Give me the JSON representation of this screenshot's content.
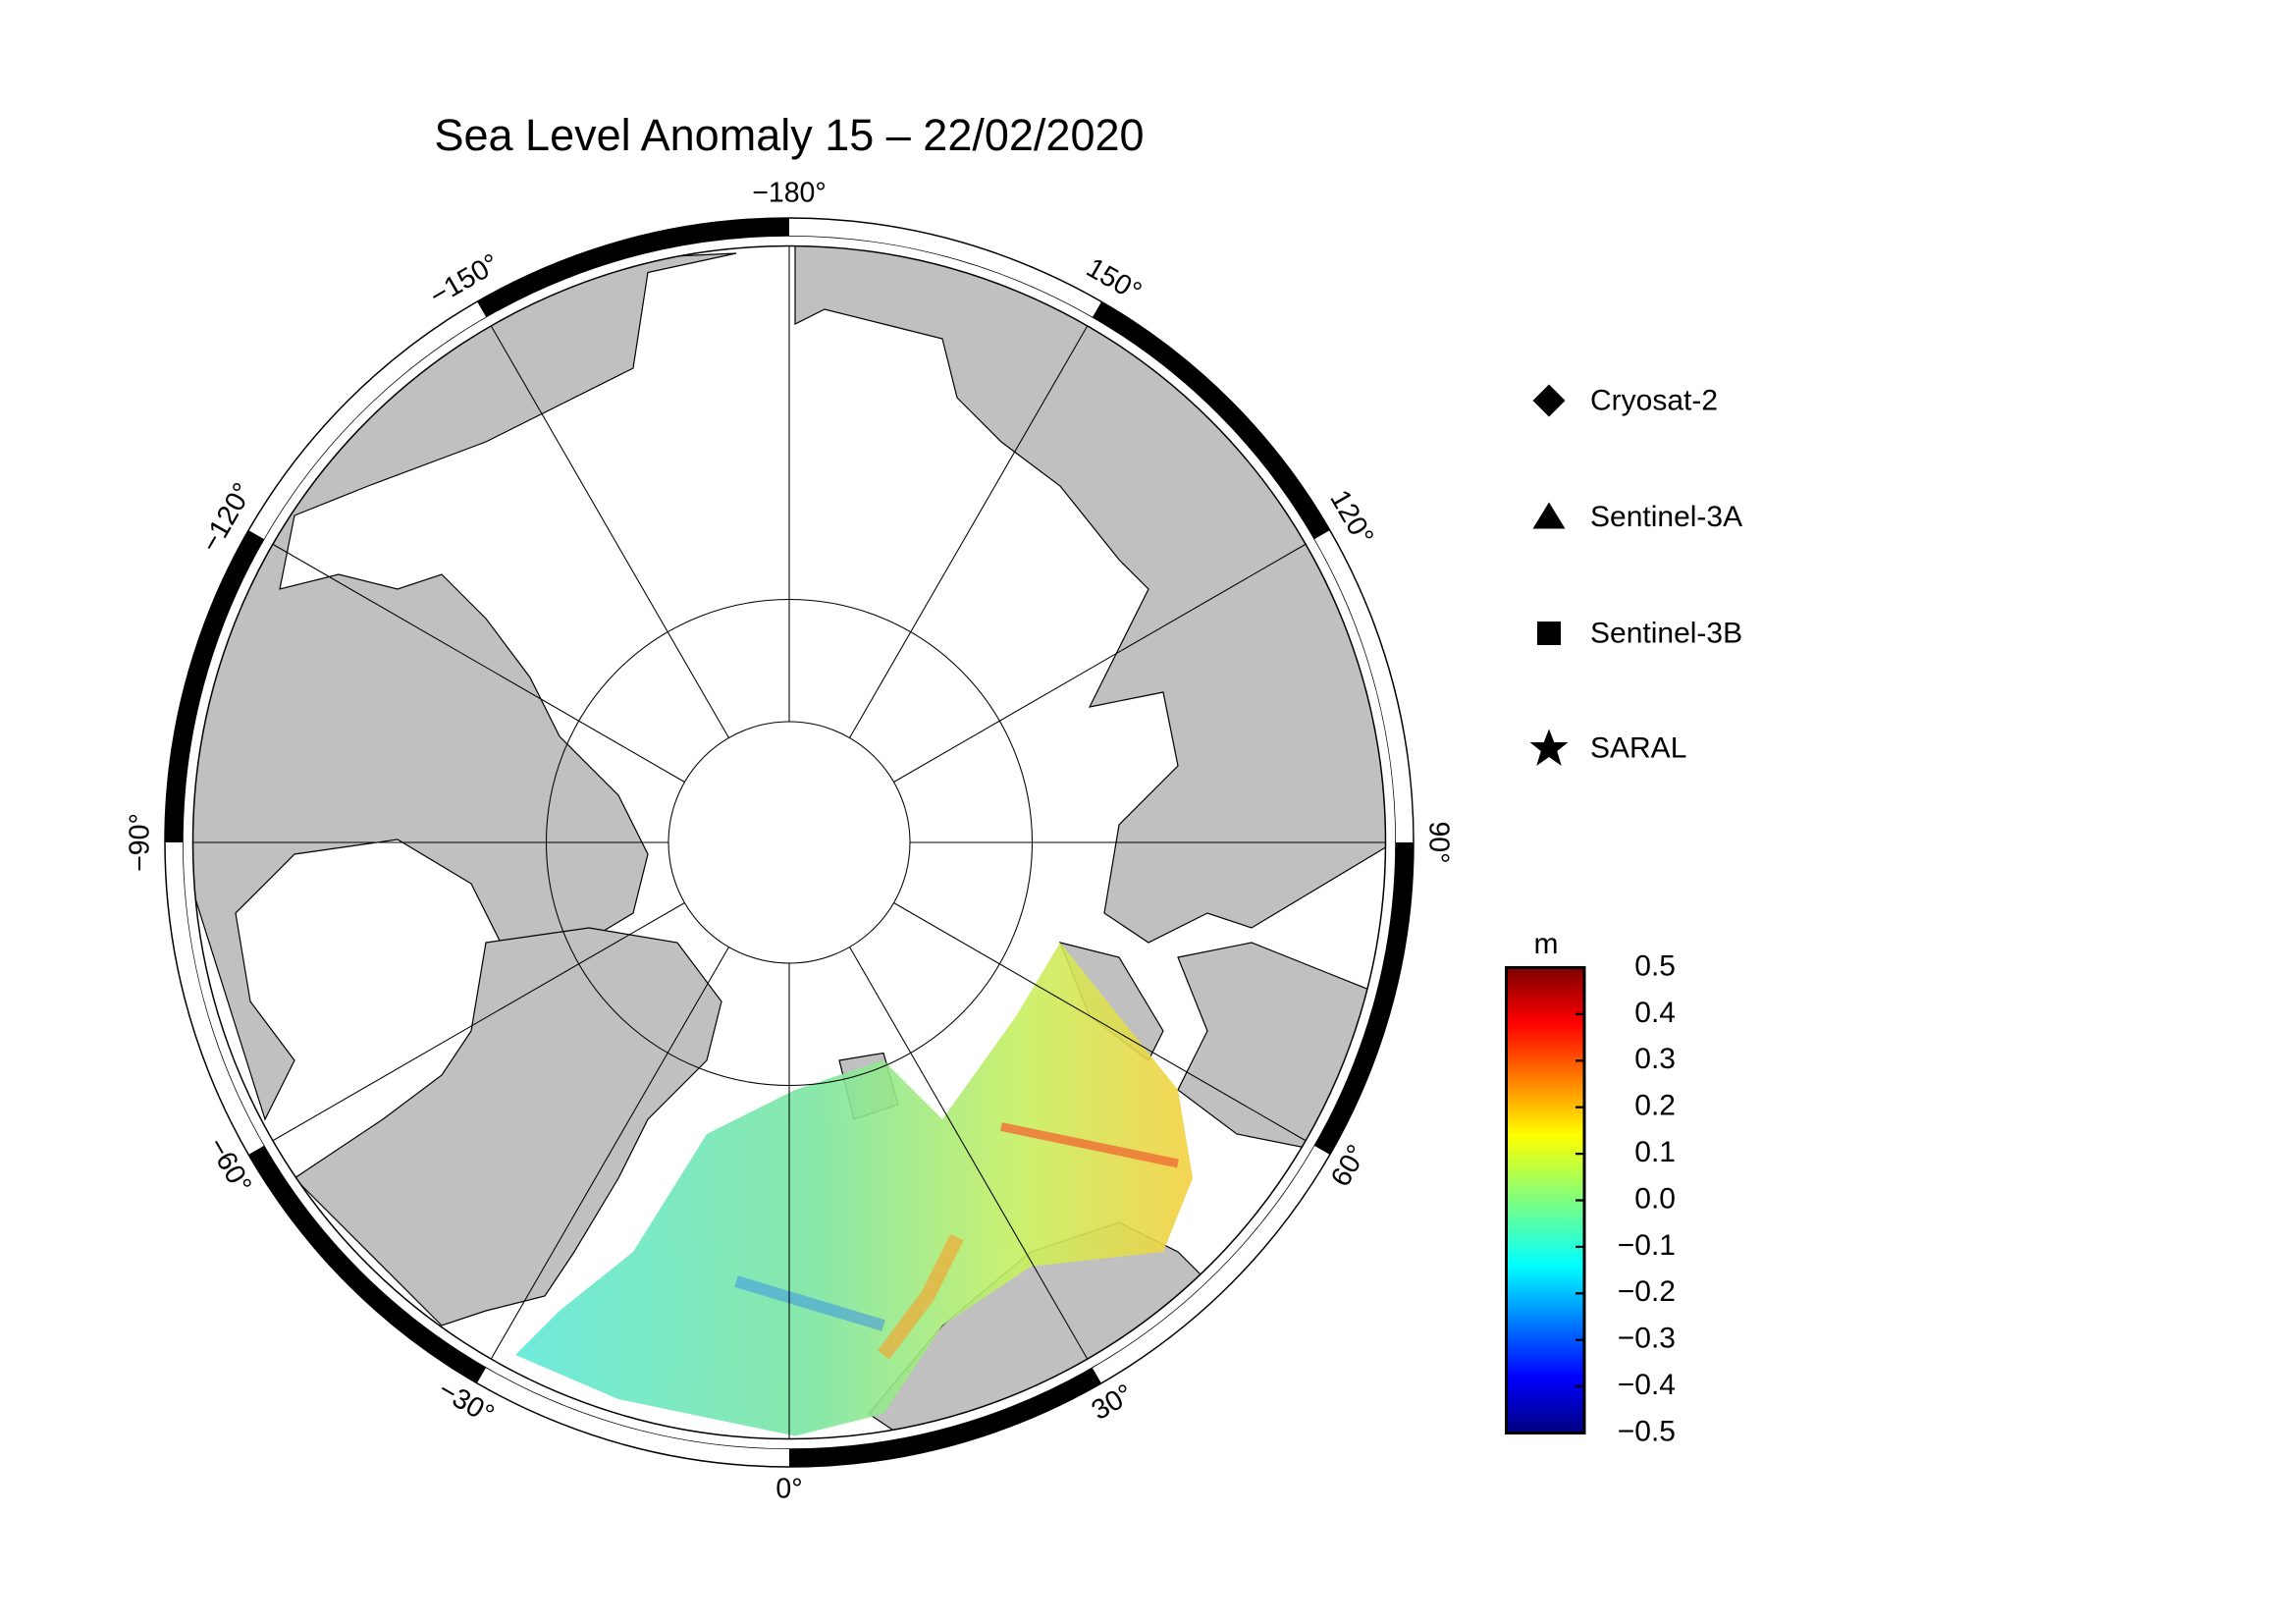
{
  "title": "Sea Level Anomaly 15 – 22/02/2020",
  "meridian_labels": [
    {
      "value": -180,
      "label": "−180°"
    },
    {
      "value": 150,
      "label": "150°"
    },
    {
      "value": 120,
      "label": "120°"
    },
    {
      "value": 90,
      "label": "90°"
    },
    {
      "value": 60,
      "label": "60°"
    },
    {
      "value": 30,
      "label": "30°"
    },
    {
      "value": 0,
      "label": "0°"
    },
    {
      "value": -30,
      "label": "−30°"
    },
    {
      "value": -60,
      "label": "−60°"
    },
    {
      "value": -90,
      "label": "−90°"
    },
    {
      "value": -120,
      "label": "−120°"
    },
    {
      "value": -150,
      "label": "−150°"
    }
  ],
  "legend": {
    "items": [
      "Cryosat-2",
      "Sentinel-3A",
      "Sentinel-3B",
      "SARAL"
    ]
  },
  "colorbar": {
    "unit": "m",
    "range": [
      -0.5,
      0.5
    ],
    "ticks": [
      {
        "value": 0.5,
        "label": "0.5"
      },
      {
        "value": 0.4,
        "label": "0.4"
      },
      {
        "value": 0.3,
        "label": "0.3"
      },
      {
        "value": 0.2,
        "label": "0.2"
      },
      {
        "value": 0.1,
        "label": "0.1"
      },
      {
        "value": 0.0,
        "label": "0.0"
      },
      {
        "value": -0.1,
        "label": "−0.1"
      },
      {
        "value": -0.2,
        "label": "−0.2"
      },
      {
        "value": -0.3,
        "label": "−0.3"
      },
      {
        "value": -0.4,
        "label": "−0.4"
      },
      {
        "value": -0.5,
        "label": "−0.5"
      }
    ]
  }
}
